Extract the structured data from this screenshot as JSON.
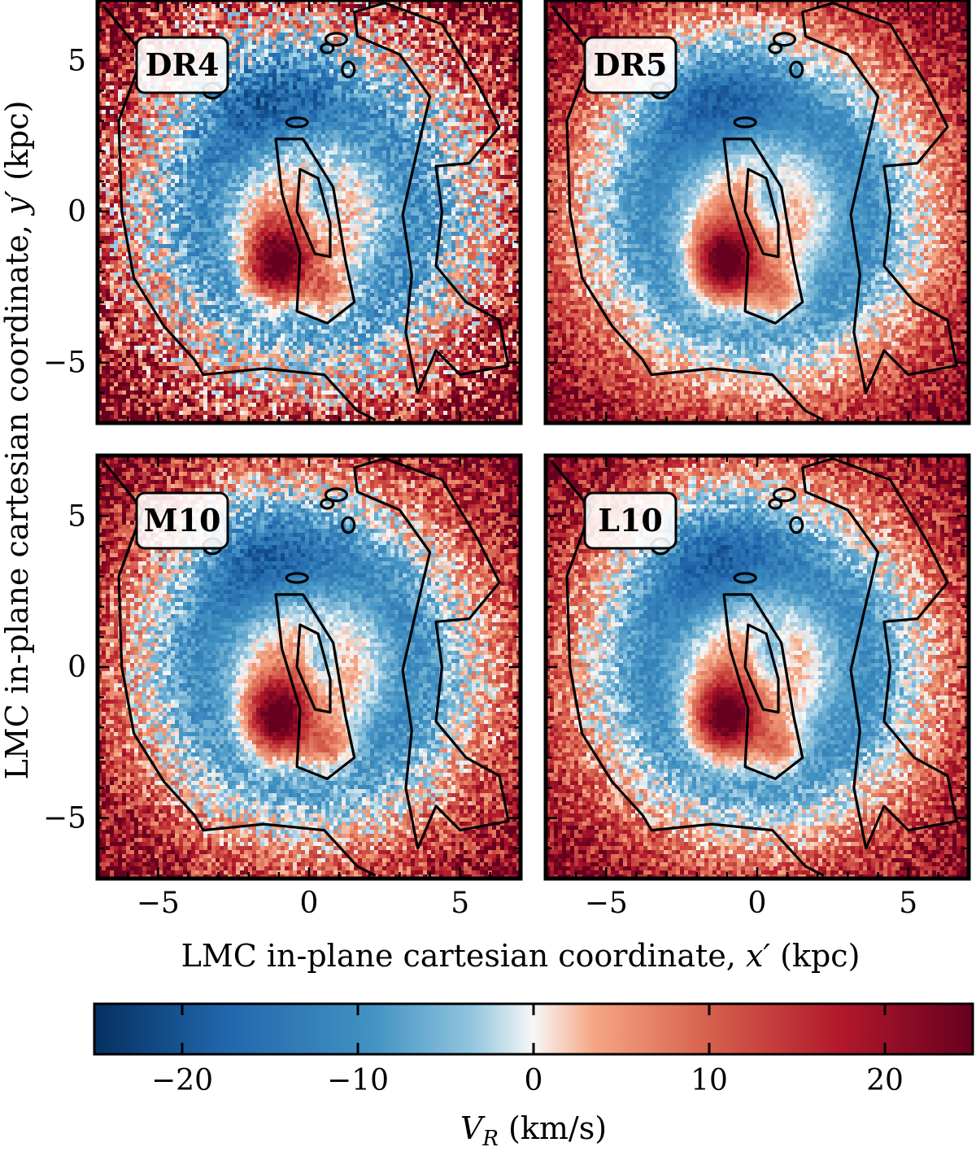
{
  "figure": {
    "xlabel_main": "LMC in-plane cartesian coordinate, ",
    "xlabel_var": "x′",
    "xlabel_unit": " (kpc)",
    "ylabel_main": "LMC in-plane cartesian coordinate, ",
    "ylabel_var": "y′",
    "ylabel_unit": " (kpc)",
    "cbar_var": "V",
    "cbar_sub": "R",
    "cbar_unit": " (km/s)"
  },
  "colors": {
    "frame": "#000000",
    "deep_blue": "#053061",
    "blue": "#2166ac",
    "light_blue": "#92c5de",
    "white": "#f7f7f7",
    "light_red": "#f4a582",
    "red": "#b2182b",
    "deep_red": "#67001f"
  },
  "chart_data": {
    "type": "heatmap",
    "panels": [
      {
        "name": "DR4",
        "noise": 1.0
      },
      {
        "name": "DR5",
        "noise": 0.55
      },
      {
        "name": "M10",
        "noise": 0.7
      },
      {
        "name": "L10",
        "noise": 0.6
      }
    ],
    "quantity": "V_R",
    "units": "km/s",
    "xlim": [
      -7,
      7
    ],
    "ylim": [
      -7,
      7
    ],
    "x_ticks": [
      -5,
      0,
      5
    ],
    "y_ticks": [
      -5,
      0,
      5
    ],
    "x_tick_labels": [
      "−5",
      "0",
      "5"
    ],
    "y_tick_labels": [
      "−5",
      "0",
      "5"
    ],
    "colorbar": {
      "vmin": -25,
      "vmax": 25,
      "ticks": [
        -20,
        -10,
        0,
        10,
        20
      ],
      "tick_labels": [
        "−20",
        "−10",
        "0",
        "10",
        "20"
      ],
      "colormap": "RdBu_r"
    }
  }
}
